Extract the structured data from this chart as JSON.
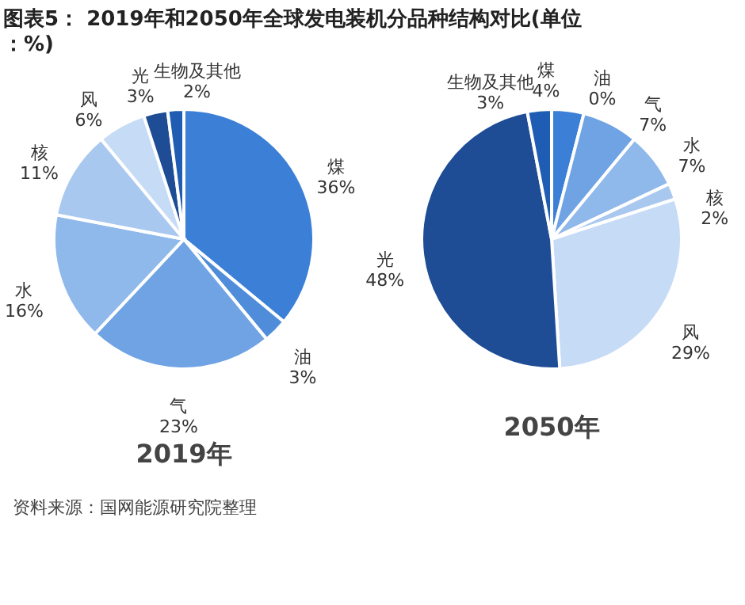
{
  "chart_data": [
    {
      "type": "pie",
      "title": "图表5： 2019年和2050年全球发电装机分品种结构对比(单位：%)",
      "xlabel": "2019年",
      "categories": [
        "煤",
        "油",
        "气",
        "水",
        "核",
        "风",
        "光",
        "生物及其他"
      ],
      "values": [
        36,
        3,
        23,
        16,
        11,
        6,
        3,
        2
      ],
      "value_labels": [
        "36%",
        "3%",
        "23%",
        "16%",
        "11%",
        "6%",
        "3%",
        "2%"
      ],
      "colors": [
        "#3b7fd6",
        "#4f8ddb",
        "#6fa3e4",
        "#8fb8eb",
        "#a9c8ef",
        "#c6dbf5",
        "#1e4d96",
        "#1f5cb3"
      ],
      "annotations": [
        "资料来源：国网能源研究院整理"
      ]
    },
    {
      "type": "pie",
      "xlabel": "2050年",
      "categories": [
        "煤",
        "油",
        "气",
        "水",
        "核",
        "风",
        "光",
        "生物及其他"
      ],
      "values": [
        4,
        0,
        7,
        7,
        2,
        29,
        48,
        3
      ],
      "value_labels": [
        "4%",
        "0%",
        "7%",
        "7%",
        "2%",
        "29%",
        "48%",
        "3%"
      ],
      "colors": [
        "#3b7fd6",
        "#4f8ddb",
        "#6fa3e4",
        "#8fb8eb",
        "#a9c8ef",
        "#c6dbf5",
        "#1e4d96",
        "#1f5cb3"
      ]
    }
  ]
}
